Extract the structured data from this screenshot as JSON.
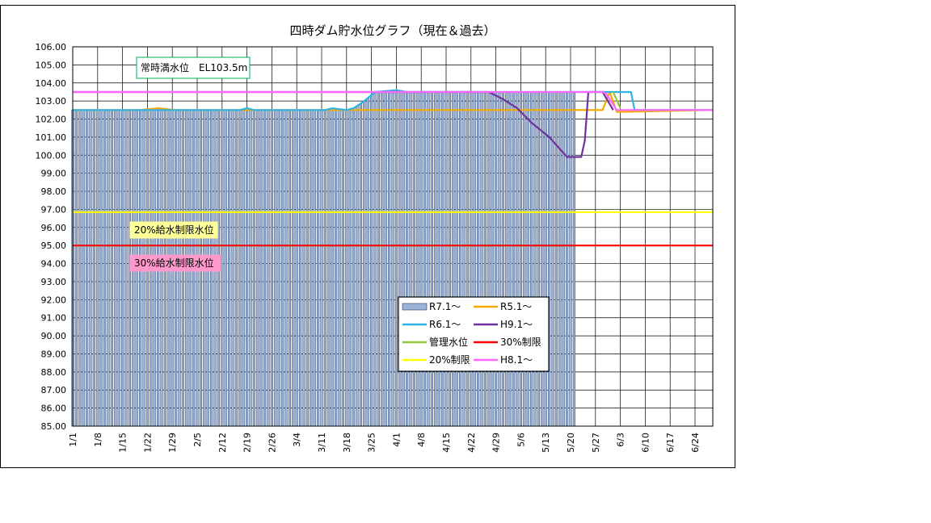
{
  "chart_data": {
    "type": "line",
    "title": "四時ダム貯水位グラフ（現在＆過去）",
    "xlabel": "",
    "ylabel": "",
    "ylim": [
      85,
      106
    ],
    "x_day_range": [
      1,
      181
    ],
    "x_ticks": [
      {
        "day": 1,
        "label": "1/1"
      },
      {
        "day": 8,
        "label": "1/8"
      },
      {
        "day": 15,
        "label": "1/15"
      },
      {
        "day": 22,
        "label": "1/22"
      },
      {
        "day": 29,
        "label": "1/29"
      },
      {
        "day": 36,
        "label": "2/5"
      },
      {
        "day": 43,
        "label": "2/12"
      },
      {
        "day": 50,
        "label": "2/19"
      },
      {
        "day": 57,
        "label": "2/26"
      },
      {
        "day": 64,
        "label": "3/4"
      },
      {
        "day": 71,
        "label": "3/11"
      },
      {
        "day": 78,
        "label": "3/18"
      },
      {
        "day": 85,
        "label": "3/25"
      },
      {
        "day": 92,
        "label": "4/1"
      },
      {
        "day": 99,
        "label": "4/8"
      },
      {
        "day": 106,
        "label": "4/15"
      },
      {
        "day": 113,
        "label": "4/22"
      },
      {
        "day": 120,
        "label": "4/29"
      },
      {
        "day": 127,
        "label": "5/6"
      },
      {
        "day": 134,
        "label": "5/13"
      },
      {
        "day": 141,
        "label": "5/20"
      },
      {
        "day": 148,
        "label": "5/27"
      },
      {
        "day": 155,
        "label": "6/3"
      },
      {
        "day": 162,
        "label": "6/10"
      },
      {
        "day": 169,
        "label": "6/17"
      },
      {
        "day": 176,
        "label": "6/24"
      }
    ],
    "y_ticks": [
      "85.00",
      "86.00",
      "87.00",
      "88.00",
      "89.00",
      "90.00",
      "91.00",
      "92.00",
      "93.00",
      "94.00",
      "95.00",
      "96.00",
      "97.00",
      "98.00",
      "99.00",
      "100.00",
      "101.00",
      "102.00",
      "103.00",
      "104.00",
      "105.00",
      "106.00"
    ],
    "grid": true,
    "legend_position": "center-right",
    "bar_series": {
      "name": "R7.1～",
      "color": "#9DB3D6",
      "day_range": [
        1,
        142
      ],
      "keyframes": [
        [
          1,
          102.5
        ],
        [
          48,
          102.5
        ],
        [
          50,
          102.6
        ],
        [
          52,
          102.5
        ],
        [
          78,
          102.5
        ],
        [
          80,
          102.6
        ],
        [
          83,
          103.0
        ],
        [
          86,
          103.5
        ],
        [
          142,
          103.5
        ]
      ]
    },
    "series": [
      {
        "name": "R5.1～",
        "color": "#F5A800",
        "points": [
          [
            1,
            102.5
          ],
          [
            20,
            102.5
          ],
          [
            25,
            102.6
          ],
          [
            30,
            102.5
          ],
          [
            140,
            102.5
          ],
          [
            150,
            102.5
          ],
          [
            152,
            103.5
          ],
          [
            154,
            102.4
          ],
          [
            181,
            102.5
          ]
        ]
      },
      {
        "name": "R6.1～",
        "color": "#2EB3E6",
        "points": [
          [
            1,
            102.5
          ],
          [
            48,
            102.5
          ],
          [
            50,
            102.6
          ],
          [
            52,
            102.5
          ],
          [
            72,
            102.5
          ],
          [
            74,
            102.6
          ],
          [
            78,
            102.5
          ],
          [
            80,
            102.6
          ],
          [
            83,
            103.0
          ],
          [
            86,
            103.5
          ],
          [
            92,
            103.6
          ],
          [
            95,
            103.5
          ],
          [
            156,
            103.5
          ],
          [
            158,
            103.5
          ],
          [
            159,
            102.5
          ],
          [
            181,
            102.5
          ]
        ]
      },
      {
        "name": "H9.1～",
        "color": "#7030A0",
        "points": [
          [
            1,
            103.5
          ],
          [
            118,
            103.5
          ],
          [
            122,
            103.1
          ],
          [
            126,
            102.6
          ],
          [
            130,
            101.8
          ],
          [
            135,
            101.0
          ],
          [
            140,
            99.9
          ],
          [
            144,
            99.9
          ],
          [
            145,
            100.8
          ],
          [
            146,
            103.5
          ],
          [
            150,
            103.5
          ],
          [
            153,
            102.5
          ]
        ]
      },
      {
        "name": "管理水位",
        "color": "#92C83E",
        "points": [
          [
            153,
            103.5
          ],
          [
            155,
            102.6
          ]
        ]
      },
      {
        "name": "30%制限",
        "color": "#FF0000",
        "points": [
          [
            1,
            95.0
          ],
          [
            181,
            95.0
          ]
        ]
      },
      {
        "name": "20%制限",
        "color": "#FFFF00",
        "points": [
          [
            1,
            96.85
          ],
          [
            181,
            96.85
          ]
        ]
      },
      {
        "name": "H8.1～",
        "color": "#FF66FF",
        "points": [
          [
            1,
            103.5
          ],
          [
            150,
            103.5
          ],
          [
            151,
            103.4
          ],
          [
            154,
            102.5
          ],
          [
            181,
            102.5
          ]
        ]
      }
    ],
    "annotations": [
      {
        "text": "常時満水位　EL103.5m",
        "border": "#00B050",
        "fill": "#FFFFFF"
      },
      {
        "text": "20%給水制限水位",
        "border": "#FFFF99",
        "fill": "#FFFF99"
      },
      {
        "text": "30%給水制限水位",
        "border": "#FF99CC",
        "fill": "#FF99CC"
      }
    ],
    "legend_order": [
      "R7.1～",
      "R5.1～",
      "R6.1～",
      "H9.1～",
      "管理水位",
      "30%制限",
      "20%制限",
      "H8.1～"
    ]
  }
}
